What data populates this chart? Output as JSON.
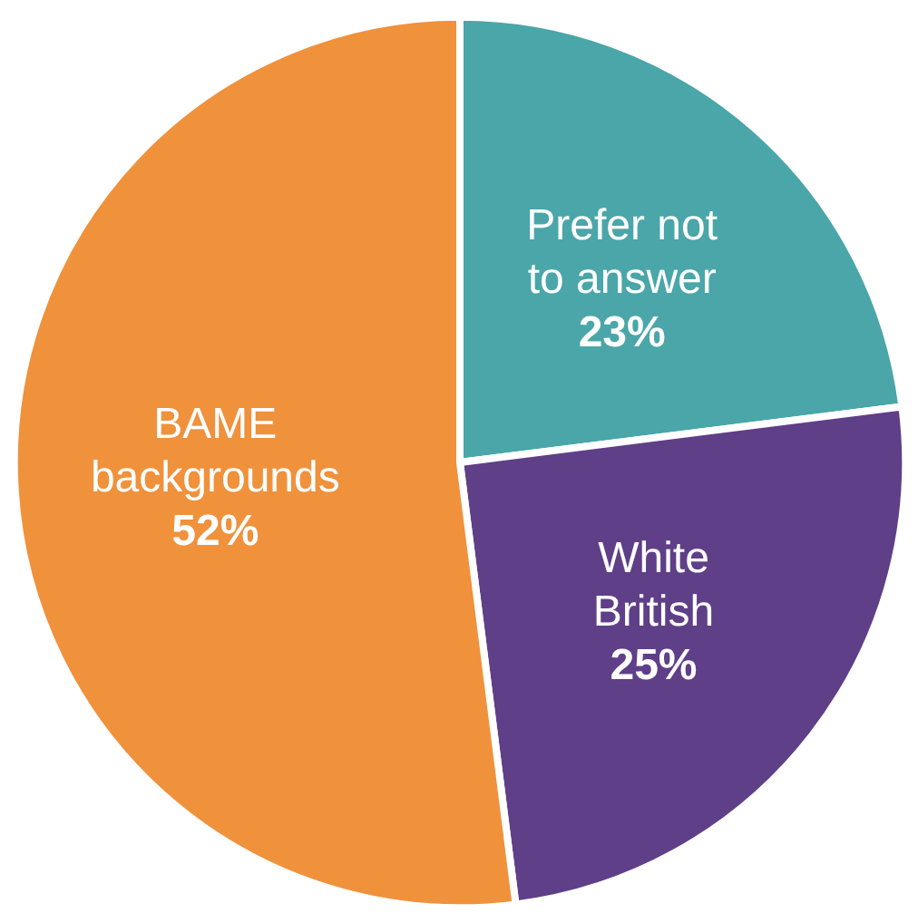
{
  "chart_data": {
    "type": "pie",
    "categories": [
      "Prefer not to answer",
      "White British",
      "BAME backgrounds"
    ],
    "values": [
      23,
      25,
      52
    ],
    "colors": [
      "#4aa6a8",
      "#5f3f88",
      "#f0913c"
    ],
    "value_labels": [
      "23%",
      "25%",
      "52%"
    ]
  }
}
